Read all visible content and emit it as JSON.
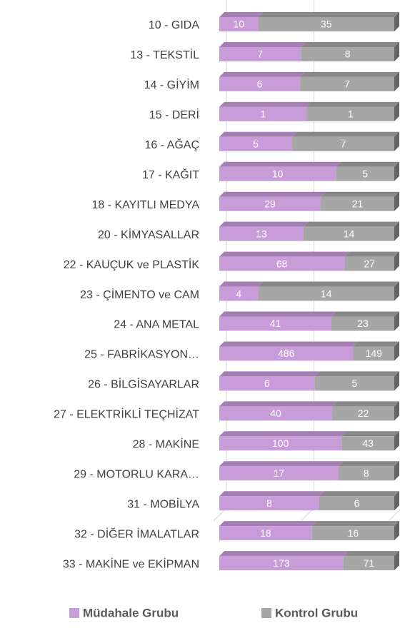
{
  "chart_data": {
    "type": "bar",
    "orientation": "horizontal",
    "stacked": "percent",
    "categories": [
      "10 - GIDA",
      "13 - TEKSTİL",
      "14 - GİYİM ",
      "15 - DERİ ",
      "16 - AĞAÇ",
      "17 - KAĞIT ",
      "18 - KAYITLI MEDYA",
      "20 - KİMYASALLAR",
      "22 - KAUÇUK ve PLASTİK ",
      "23 - ÇİMENTO ve CAM",
      "24 - ANA METAL",
      "25 - FABRİKASYON…",
      "26 - BİLGİSAYARLAR ",
      "27 - ELEKTRİKLİ TEÇHİZAT",
      "28 -  MAKİNE ",
      "29 - MOTORLU KARA…",
      "31 - MOBİLYA",
      "32 - DİĞER İMALATLAR",
      "33 - MAKİNE ve EKİPMAN"
    ],
    "series": [
      {
        "name": "Müdahale Grubu",
        "color": "#c89cd9",
        "values": [
          10,
          7,
          6,
          1,
          5,
          10,
          29,
          13,
          68,
          4,
          41,
          486,
          6,
          40,
          100,
          17,
          8,
          18,
          173
        ]
      },
      {
        "name": "Kontrol Grubu",
        "color": "#a6a6a6",
        "values": [
          35,
          8,
          7,
          1,
          7,
          5,
          21,
          14,
          27,
          14,
          23,
          149,
          5,
          22,
          43,
          8,
          6,
          16,
          71
        ]
      }
    ],
    "xlim": [
      0,
      100
    ],
    "xticks": [
      0,
      50,
      100
    ],
    "grid": true,
    "legend": "bottom"
  }
}
